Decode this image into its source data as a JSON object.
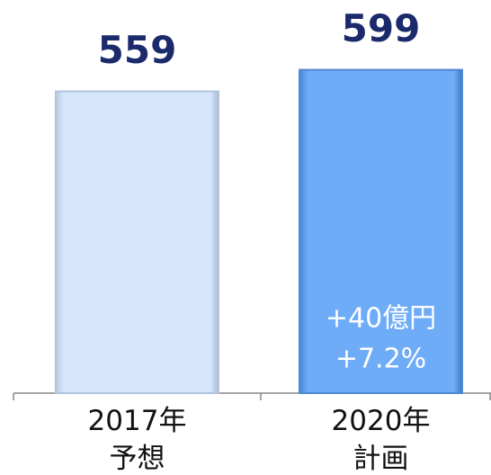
{
  "chart_data": {
    "type": "bar",
    "categories": [
      "2017年\n予想",
      "2020年\n計画"
    ],
    "values": [
      559,
      599
    ],
    "colors": [
      "#cfe2fb",
      "#68a8f6"
    ],
    "annotations": [
      "+40億円",
      "+7.2%"
    ]
  }
}
